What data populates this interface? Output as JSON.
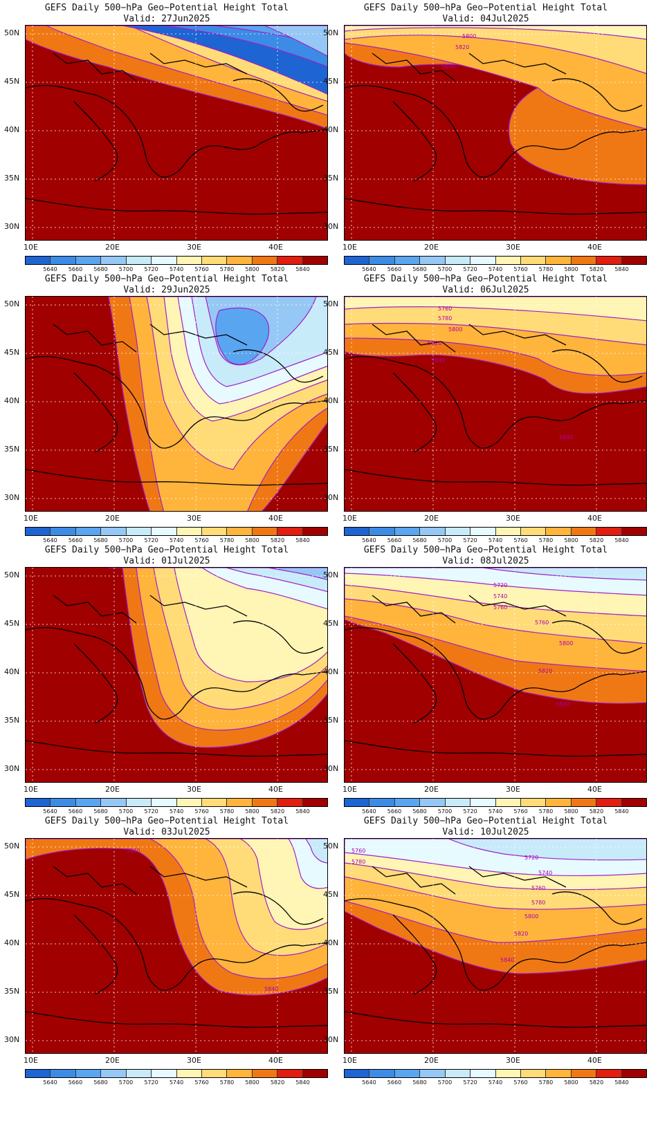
{
  "panels": [
    {
      "title": "GEFS Daily 500−hPa Geo−Potential Height Total",
      "valid": "Valid: 27Jun2025",
      "labels": []
    },
    {
      "title": "GEFS Daily 500−hPa Geo−Potential Height Total",
      "valid": "Valid: 04Jul2025",
      "labels": [
        "5800",
        "5820",
        "5840"
      ]
    },
    {
      "title": "GEFS Daily 500−hPa Geo−Potential Height Total",
      "valid": "Valid: 29Jun2025",
      "labels": []
    },
    {
      "title": "GEFS Daily 500−hPa Geo−Potential Height Total",
      "valid": "Valid: 06Jul2025",
      "labels": [
        "5760",
        "5780",
        "5800",
        "5820",
        "5840",
        "5840"
      ]
    },
    {
      "title": "GEFS Daily 500−hPa Geo−Potential Height Total",
      "valid": "Valid: 01Jul2025",
      "labels": []
    },
    {
      "title": "GEFS Daily 500−hPa Geo−Potential Height Total",
      "valid": "Valid: 08Jul2025",
      "labels": [
        "5720",
        "5740",
        "5760",
        "5760",
        "5800",
        "5820",
        "5840"
      ]
    },
    {
      "title": "GEFS Daily 500−hPa Geo−Potential Height Total",
      "valid": "Valid: 03Jul2025",
      "labels": [
        "5840",
        "5840"
      ]
    },
    {
      "title": "GEFS Daily 500−hPa Geo−Potential Height Total",
      "valid": "Valid: 10Jul2025",
      "labels": [
        "5760",
        "5780",
        "5720",
        "5740",
        "5760",
        "5780",
        "5800",
        "5820",
        "5840"
      ]
    }
  ],
  "lat_labels": [
    "50N",
    "45N",
    "40N",
    "35N",
    "30N"
  ],
  "lon_labels": [
    "10E",
    "20E",
    "30E",
    "40E"
  ],
  "colorbar": {
    "labels": [
      "5640",
      "5660",
      "5680",
      "5700",
      "5720",
      "5740",
      "5760",
      "5780",
      "5800",
      "5820",
      "5840"
    ],
    "colors": [
      "#1e64d2",
      "#3c8ce6",
      "#5aa5f0",
      "#96c8f5",
      "#c8ebfa",
      "#e6faff",
      "#fff5b4",
      "#ffdc78",
      "#ffb43c",
      "#f07814",
      "#e11e0f",
      "#a00000"
    ]
  },
  "colors": {
    "contour": "#a020c8",
    "label": "#b000b0",
    "grid": "#ffffff"
  }
}
